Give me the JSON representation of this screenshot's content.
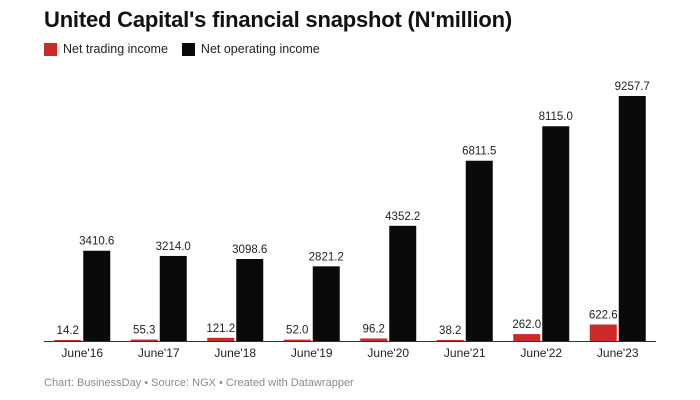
{
  "title": "United Capital's financial snapshot (N'million)",
  "colors": {
    "trading": "#cc2a28",
    "operating": "#0a0a0a"
  },
  "chart_data": {
    "type": "bar",
    "categories": [
      "June'16",
      "June'17",
      "June'18",
      "June'19",
      "June'20",
      "June'21",
      "June'22",
      "June'23"
    ],
    "series": [
      {
        "name": "Net trading income",
        "values": [
          14.2,
          55.3,
          121.2,
          52.0,
          96.2,
          38.2,
          262.0,
          622.6
        ],
        "labels": [
          "14.2",
          "55.3",
          "121.2",
          "52.0",
          "96.2",
          "38.2",
          "262.0",
          "622.6"
        ]
      },
      {
        "name": "Net operating income",
        "values": [
          3410.6,
          3214.0,
          3098.6,
          2821.2,
          4352.2,
          6811.5,
          8115.0,
          9257.7
        ],
        "labels": [
          "3410.6",
          "3214.0",
          "3098.6",
          "2821.2",
          "4352.2",
          "6811.5",
          "8115.0",
          "9257.7"
        ]
      }
    ],
    "ylim": [
      0,
      9257.7
    ],
    "grid": false,
    "legend": "top-left"
  },
  "footer": "Chart: BusinessDay • Source: NGX • Created with Datawrapper"
}
